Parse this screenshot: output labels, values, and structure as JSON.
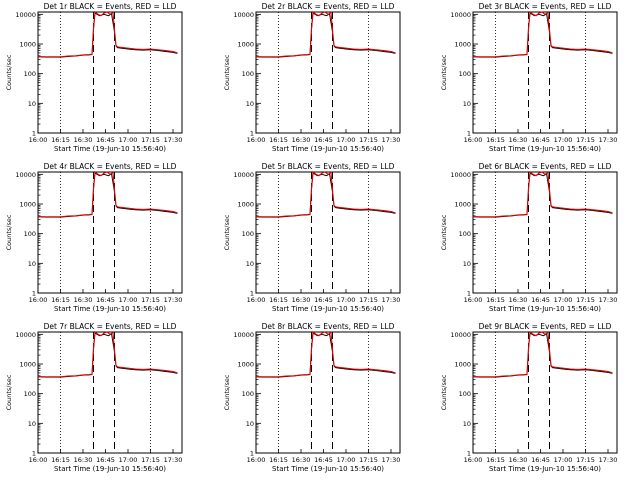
{
  "colors": {
    "events": "#000000",
    "lld": "#e00000",
    "background": "#ffffff",
    "frame": "#000000"
  },
  "xlabel": "Start Time (19-Jun-10 15:56:40)",
  "ylabel": "Counts/sec",
  "chart_data": [
    {
      "type": "line",
      "title": "Det 1r BLACK = Events, RED = LLD",
      "xlabel": "Start Time (19-Jun-10 15:56:40)",
      "ylabel": "Counts/sec",
      "y_scale": "log",
      "ylim": [
        1,
        12000
      ],
      "y_ticks": [
        "1",
        "10",
        "100",
        "1000",
        "10000"
      ],
      "xlim": [
        "16:00",
        "17:36"
      ],
      "x_ticks": [
        "16:00",
        "16:15",
        "16:30",
        "16:45",
        "17:00",
        "17:15",
        "17:30"
      ],
      "grid": "vertical dotted at 16:15, 17:15",
      "annotations": [
        "vertical dashed lines at 16:37 and 16:51"
      ],
      "series": [
        {
          "name": "Events",
          "color": "#000000",
          "x": [
            "16:00",
            "16:05",
            "16:10",
            "16:15",
            "16:20",
            "16:25",
            "16:30",
            "16:34",
            "16:36",
            "16:37",
            "16:38",
            "16:41",
            "16:44",
            "16:47",
            "16:49",
            "16:51",
            "16:52",
            "16:53",
            "17:00",
            "17:05",
            "17:10",
            "17:15",
            "17:20",
            "17:25",
            "17:30",
            "17:33"
          ],
          "y": [
            370,
            360,
            360,
            360,
            380,
            390,
            420,
            430,
            440,
            3000,
            11000,
            9000,
            10000,
            9000,
            10500,
            2500,
            850,
            750,
            680,
            640,
            620,
            640,
            600,
            560,
            520,
            480
          ]
        },
        {
          "name": "LLD",
          "color": "#e00000",
          "x": [
            "16:00",
            "16:05",
            "16:10",
            "16:15",
            "16:20",
            "16:25",
            "16:30",
            "16:34",
            "16:36",
            "16:37",
            "16:38",
            "16:40",
            "16:42",
            "16:44",
            "16:46",
            "16:48",
            "16:50",
            "16:51",
            "16:52",
            "16:53",
            "17:00",
            "17:05",
            "17:10",
            "17:15",
            "17:20",
            "17:25",
            "17:30",
            "17:33"
          ],
          "y": [
            380,
            370,
            370,
            370,
            390,
            400,
            430,
            440,
            450,
            3500,
            12000,
            10000,
            9000,
            11000,
            12000,
            10000,
            11500,
            3000,
            900,
            800,
            720,
            680,
            660,
            680,
            640,
            600,
            560,
            500
          ]
        }
      ]
    },
    {
      "type": "line",
      "title": "Det 2r BLACK = Events, RED = LLD",
      "xlabel": "Start Time (19-Jun-10 15:56:40)",
      "ylabel": "Counts/sec",
      "y_scale": "log",
      "ylim": [
        1,
        12000
      ],
      "same_series_as_panel": 1
    },
    {
      "type": "line",
      "title": "Det 3r BLACK = Events, RED = LLD",
      "xlabel": "Start Time (19-Jun-10 15:56:40)",
      "ylabel": "Counts/sec",
      "y_scale": "log",
      "ylim": [
        1,
        12000
      ],
      "same_series_as_panel": 1
    },
    {
      "type": "line",
      "title": "Det 4r BLACK = Events, RED = LLD",
      "xlabel": "Start Time (19-Jun-10 15:56:40)",
      "ylabel": "Counts/sec",
      "y_scale": "log",
      "ylim": [
        1,
        12000
      ],
      "same_series_as_panel": 1
    },
    {
      "type": "line",
      "title": "Det 5r BLACK = Events, RED = LLD",
      "xlabel": "Start Time (19-Jun-10 15:56:40)",
      "ylabel": "Counts/sec",
      "y_scale": "log",
      "ylim": [
        1,
        12000
      ],
      "same_series_as_panel": 1
    },
    {
      "type": "line",
      "title": "Det 6r BLACK = Events, RED = LLD",
      "xlabel": "Start Time (19-Jun-10 15:56:40)",
      "ylabel": "Counts/sec",
      "y_scale": "log",
      "ylim": [
        1,
        12000
      ],
      "same_series_as_panel": 1
    },
    {
      "type": "line",
      "title": "Det 7r BLACK = Events, RED = LLD",
      "xlabel": "Start Time (19-Jun-10 15:56:40)",
      "ylabel": "Counts/sec",
      "y_scale": "log",
      "ylim": [
        1,
        12000
      ],
      "same_series_as_panel": 1
    },
    {
      "type": "line",
      "title": "Det 8r BLACK = Events, RED = LLD",
      "xlabel": "Start Time (19-Jun-10 15:56:40)",
      "ylabel": "Counts/sec",
      "y_scale": "log",
      "ylim": [
        1,
        12000
      ],
      "same_series_as_panel": 1
    },
    {
      "type": "line",
      "title": "Det 9r BLACK = Events, RED = LLD",
      "xlabel": "Start Time (19-Jun-10 15:56:40)",
      "ylabel": "Counts/sec",
      "y_scale": "log",
      "ylim": [
        1,
        12000
      ],
      "same_series_as_panel": 1
    }
  ]
}
